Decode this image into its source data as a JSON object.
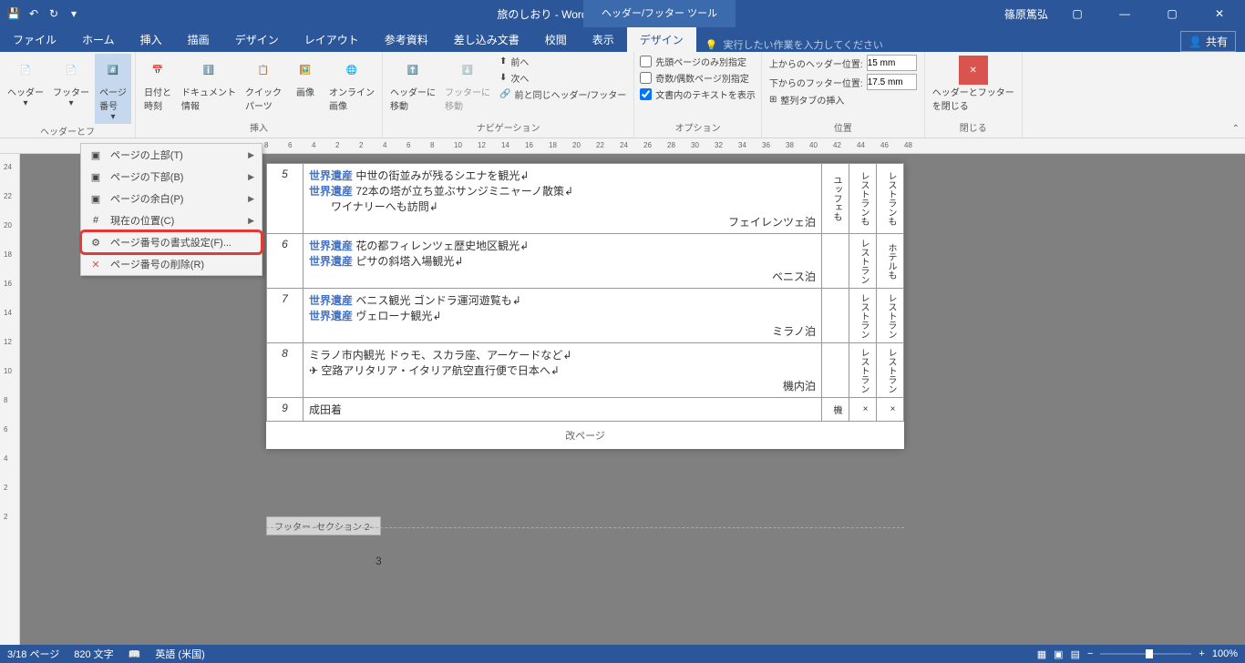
{
  "titlebar": {
    "doc_title": "旅のしおり - Word",
    "tool_tab": "ヘッダー/フッター ツール",
    "user": "篠原篤弘"
  },
  "tabs": {
    "file": "ファイル",
    "home": "ホーム",
    "insert": "挿入",
    "draw": "描画",
    "design": "デザイン",
    "layout": "レイアウト",
    "references": "参考資料",
    "mailings": "差し込み文書",
    "review": "校閲",
    "view": "表示",
    "hf_design": "デザイン",
    "tellme": "実行したい作業を入力してください",
    "share": "共有"
  },
  "ribbon": {
    "header": "ヘッダー",
    "footer": "フッター",
    "page_num": "ページ\n番号",
    "datetime": "日付と\n時刻",
    "docinfo": "ドキュメント\n情報",
    "quick": "クイック\nパーツ",
    "image": "画像",
    "online_img": "オンライン\n画像",
    "goto_header": "ヘッダーに\n移動",
    "goto_footer": "フッターに\n移動",
    "prev": "前へ",
    "next": "次へ",
    "link": "前と同じヘッダー/フッター",
    "first_diff": "先頭ページのみ別指定",
    "odd_even": "奇数/偶数ページ別指定",
    "show_text": "文書内のテキストを表示",
    "align_tab": "整列タブの挿入",
    "header_pos": "上からのヘッダー位置:",
    "footer_pos": "下からのフッター位置:",
    "header_val": "15 mm",
    "footer_val": "17.5 mm",
    "close": "ヘッダーとフッター\nを閉じる",
    "g1": "ヘッダーとフ",
    "g2": "挿入",
    "g3": "ナビゲーション",
    "g4": "オプション",
    "g5": "位置",
    "g6": "閉じる"
  },
  "dropdown": {
    "top": "ページの上部(T)",
    "bottom": "ページの下部(B)",
    "margin": "ページの余白(P)",
    "current": "現在の位置(C)",
    "format": "ページ番号の書式設定(F)...",
    "remove": "ページ番号の削除(R)"
  },
  "ruler": [
    "8",
    "6",
    "4",
    "2",
    "2",
    "4",
    "6",
    "8",
    "10",
    "12",
    "14",
    "16",
    "18",
    "20",
    "22",
    "24",
    "26",
    "28",
    "30",
    "32",
    "34",
    "36",
    "38",
    "40",
    "42",
    "44",
    "46",
    "48"
  ],
  "vruler": [
    "24",
    "22",
    "20",
    "18",
    "16",
    "14",
    "12",
    "10",
    "8",
    "6",
    "4",
    "2",
    "2"
  ],
  "table": {
    "heritage": "世界遺産",
    "r5": {
      "day": "5",
      "l1": "中世の街並みが残るシエナを観光",
      "l2": "72本の塔が立ち並ぶサンジミニャーノ散策",
      "l3": "ワイナリーへも訪問",
      "stay": "フェイレンツェ泊",
      "c1": "ユッフェも",
      "c2": "レストランも",
      "c3": "レストランも"
    },
    "r6": {
      "day": "6",
      "l1": "花の都フィレンツェ歴史地区観光",
      "l2": "ピサの斜塔入場観光",
      "stay": "ベニス泊",
      "c2": "レストラン",
      "c3": "ホテルも"
    },
    "r7": {
      "day": "7",
      "l1": "ベニス観光 ゴンドラ運河遊覧も",
      "l2": "ヴェローナ観光",
      "stay": "ミラノ泊",
      "c2": "レストラン",
      "c3": "レストラン"
    },
    "r8": {
      "day": "8",
      "l1": "ミラノ市内観光 ドゥモ、スカラ座、アーケードなど",
      "l2": "✈ 空路アリタリア・イタリア航空直行便で日本へ",
      "stay": "機内泊",
      "c2": "レストラン",
      "c3": "レストラン"
    },
    "r9": {
      "day": "9",
      "l1": "成田着",
      "c1": "機",
      "c2": "×",
      "c3": "×"
    },
    "pagebreak": "改ページ"
  },
  "footer_tag": "フッター -セクション 2-",
  "page_num_display": "3",
  "status": {
    "page": "3/18 ページ",
    "words": "820 文字",
    "lang": "英語 (米国)",
    "zoom": "100%"
  }
}
